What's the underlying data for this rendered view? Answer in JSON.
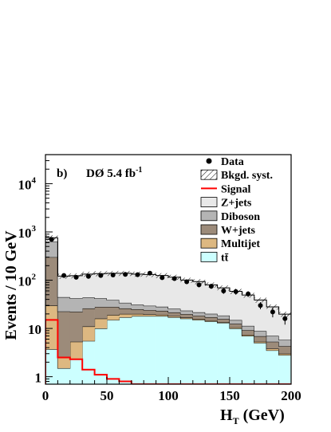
{
  "chart_data": {
    "type": "bar",
    "panel_label": "b)",
    "experiment_label": "DØ 5.4 fb",
    "experiment_label_sup": "-1",
    "xlabel": "H",
    "xlabel_sub": "T",
    "xlabel_unit": " (GeV)",
    "ylabel": "Events / 10 GeV",
    "ylog": true,
    "xlim": [
      0,
      200
    ],
    "ylim": [
      0.7,
      40000
    ],
    "x_ticks": [
      "0",
      "50",
      "100",
      "150",
      "200"
    ],
    "y_ticks": [
      {
        "base": "1",
        "exp": ""
      },
      {
        "base": "10",
        "exp": ""
      },
      {
        "base": "10",
        "exp": "2"
      },
      {
        "base": "10",
        "exp": "3"
      },
      {
        "base": "10",
        "exp": "4"
      }
    ],
    "y_tick_values": [
      1,
      10,
      100,
      1000,
      10000
    ],
    "bin_edges": [
      0,
      10,
      20,
      30,
      40,
      50,
      60,
      70,
      80,
      90,
      100,
      110,
      120,
      130,
      140,
      150,
      160,
      170,
      180,
      190,
      200
    ],
    "stack": [
      {
        "name": "tt̄",
        "color": "#ccffff",
        "values": [
          3.7,
          1.5,
          2.3,
          5.5,
          10,
          15,
          17,
          18,
          18,
          18,
          17,
          16,
          15,
          14,
          13,
          10,
          7,
          5,
          3.5,
          2.8
        ]
      },
      {
        "name": "Multijet",
        "color": "#ddb881",
        "values": [
          26,
          1.0,
          3.0,
          5.5,
          6,
          4,
          3,
          2,
          1.5,
          1.2,
          1.0,
          0.8,
          0.7,
          0.6,
          0.5,
          0.5,
          0.4,
          0.3,
          0.3,
          0.2
        ]
      },
      {
        "name": "W+jets",
        "color": "#9c8b7a",
        "values": [
          270,
          20,
          17,
          15,
          12,
          9,
          6,
          5,
          4.5,
          4,
          3.5,
          3,
          2.7,
          2.5,
          2.2,
          2,
          1.8,
          1.6,
          1.5,
          1.3
        ]
      },
      {
        "name": "Diboson",
        "color": "#b4b4b4",
        "values": [
          330,
          22,
          20,
          18,
          14,
          11,
          8,
          6,
          5.5,
          5,
          4,
          3.6,
          3.2,
          3,
          2.8,
          2.4,
          2.1,
          1.9,
          1.7,
          1.5
        ]
      },
      {
        "name": "Z+jets",
        "color": "#e8e8e8",
        "values": [
          130,
          77,
          82,
          90,
          95,
          100,
          105,
          103,
          102,
          97,
          90,
          77,
          72,
          60,
          51,
          44,
          38,
          30,
          21,
          14
        ]
      }
    ],
    "bkgd_syst": {
      "name": "Bkgd. syst.",
      "rel_unc": 0.12
    },
    "signal": {
      "name": "Signal",
      "color": "#ff0000",
      "values": [
        15,
        2.5,
        2.3,
        1.4,
        1.1,
        0.9,
        0.8,
        0.7,
        0.6,
        0.55,
        0.5,
        0.45,
        0.4,
        0.35,
        0.3,
        0.3,
        0.25,
        0.2,
        0.2,
        0.2
      ]
    },
    "data": {
      "name": "Data",
      "x": [
        5,
        15,
        25,
        35,
        45,
        55,
        65,
        75,
        85,
        95,
        105,
        115,
        125,
        135,
        145,
        155,
        165,
        175,
        185,
        195
      ],
      "y": [
        700,
        125,
        115,
        120,
        125,
        128,
        132,
        130,
        140,
        113,
        108,
        93,
        80,
        75,
        60,
        58,
        52,
        30,
        22,
        16
      ],
      "yerr": [
        26,
        11,
        11,
        11,
        11,
        11,
        11,
        11,
        12,
        11,
        10,
        10,
        9,
        9,
        8,
        8,
        7,
        5,
        5,
        4
      ]
    },
    "legend": {
      "position": "top-right",
      "entries": [
        {
          "label": "Data",
          "kind": "marker"
        },
        {
          "label": "Bkgd. syst.",
          "kind": "hatch"
        },
        {
          "label": "Signal",
          "kind": "line",
          "color": "#ff0000"
        },
        {
          "label": "Z+jets",
          "kind": "box",
          "color": "#e8e8e8"
        },
        {
          "label": "Diboson",
          "kind": "box",
          "color": "#b4b4b4"
        },
        {
          "label": "W+jets",
          "kind": "box",
          "color": "#9c8b7a"
        },
        {
          "label": "Multijet",
          "kind": "box",
          "color": "#ddb881"
        },
        {
          "label": "tt̄",
          "kind": "box",
          "color": "#ccffff"
        }
      ]
    }
  }
}
